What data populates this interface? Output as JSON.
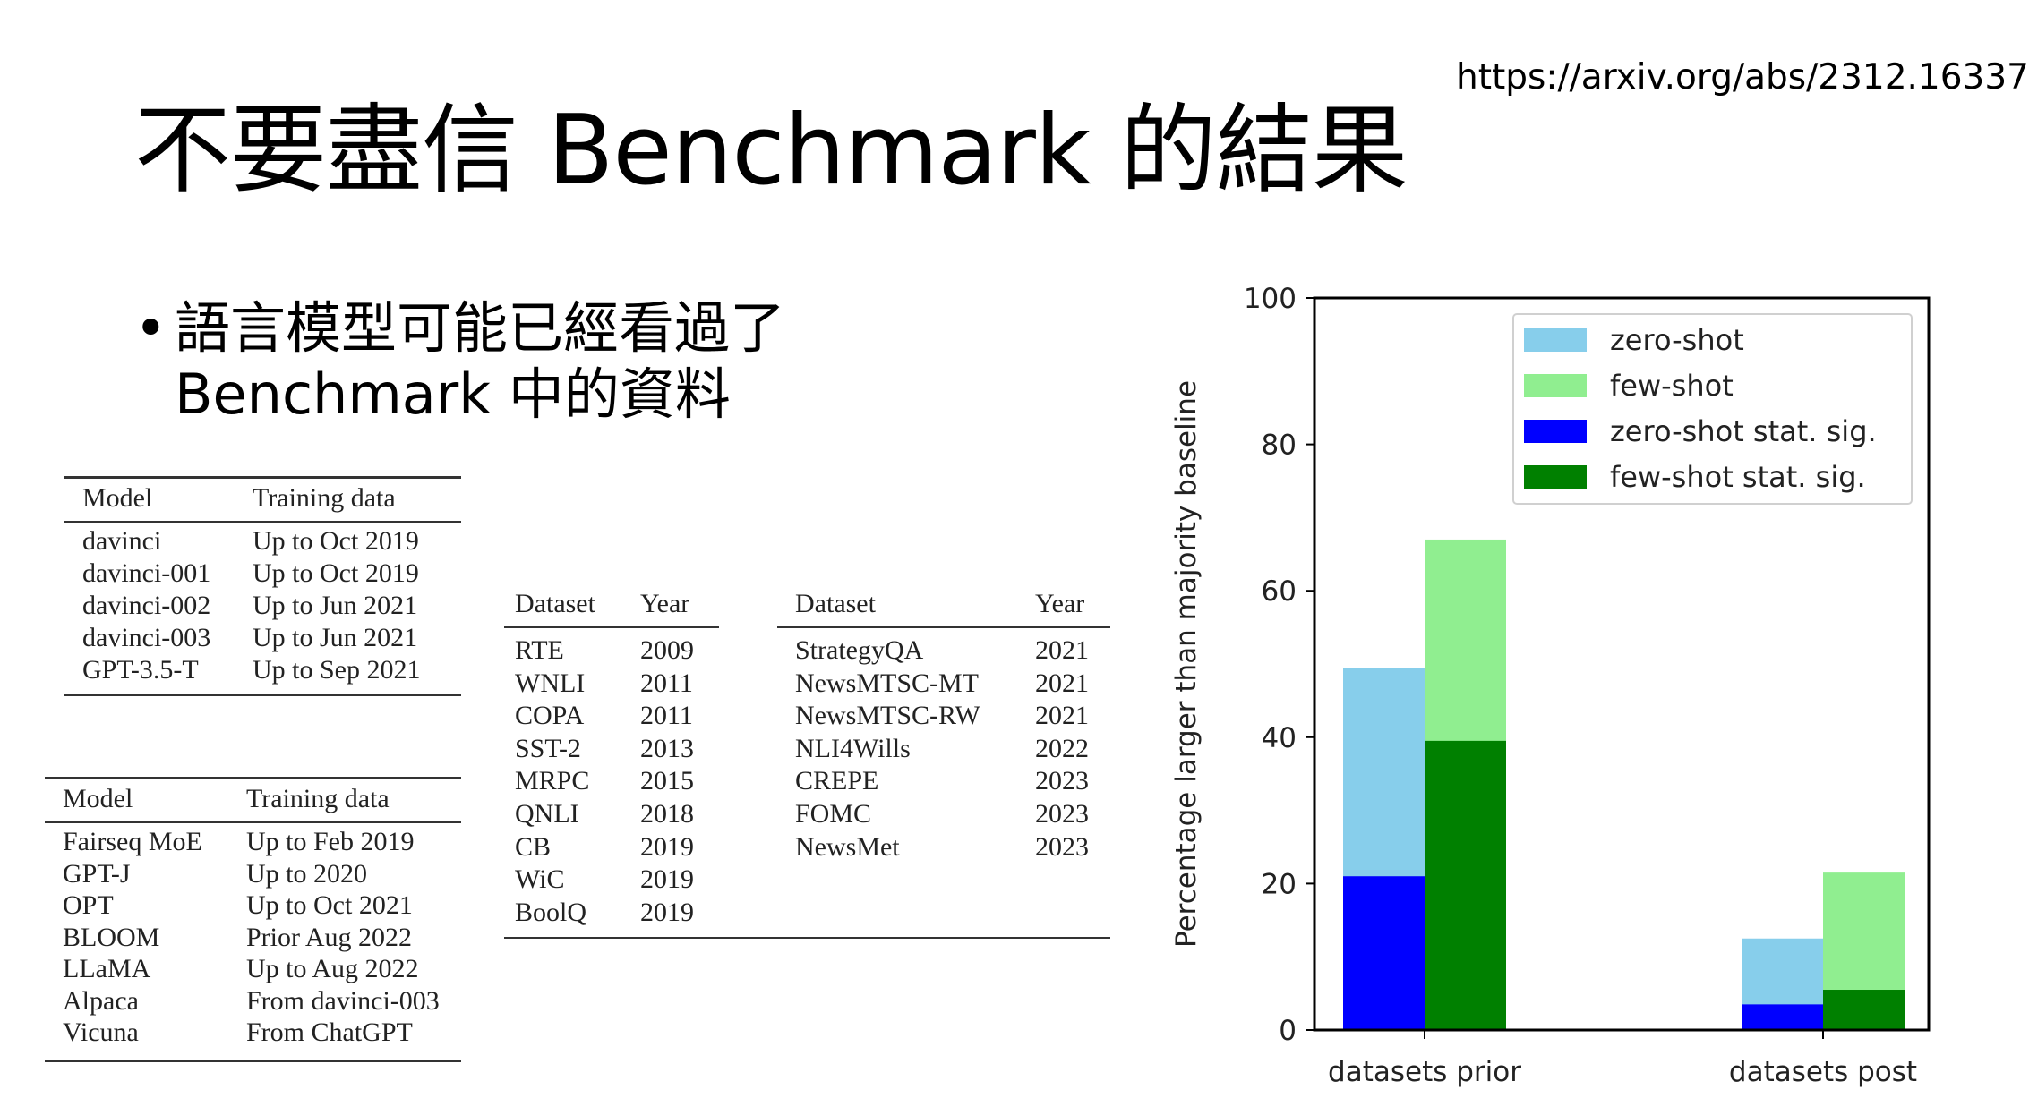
{
  "source_url": "https://arxiv.org/abs/2312.16337",
  "slide_title": "不要盡信 Benchmark 的結果",
  "bullet": {
    "line1": "語言模型可能已經看過了",
    "line2": "Benchmark 中的資料"
  },
  "table_openai": {
    "headers": [
      "Model",
      "Training data"
    ],
    "rows": [
      [
        "davinci",
        "Up to Oct 2019"
      ],
      [
        "davinci-001",
        "Up to Oct 2019"
      ],
      [
        "davinci-002",
        "Up to Jun 2021"
      ],
      [
        "davinci-003",
        "Up to Jun 2021"
      ],
      [
        "GPT-3.5-T",
        "Up to Sep 2021"
      ]
    ]
  },
  "table_open_models": {
    "headers": [
      "Model",
      "Training data"
    ],
    "rows": [
      [
        "Fairseq MoE",
        "Up to Feb 2019"
      ],
      [
        "GPT-J",
        "Up to 2020"
      ],
      [
        "OPT",
        "Up to Oct 2021"
      ],
      [
        "BLOOM",
        "Prior Aug 2022"
      ],
      [
        "LLaMA",
        "Up to Aug 2022"
      ],
      [
        "Alpaca",
        "From davinci-003"
      ],
      [
        "Vicuna",
        "From ChatGPT"
      ]
    ]
  },
  "table_datasets": {
    "left_headers": [
      "Dataset",
      "Year"
    ],
    "left_rows": [
      [
        "RTE",
        "2009"
      ],
      [
        "WNLI",
        "2011"
      ],
      [
        "COPA",
        "2011"
      ],
      [
        "SST-2",
        "2013"
      ],
      [
        "MRPC",
        "2015"
      ],
      [
        "QNLI",
        "2018"
      ],
      [
        "CB",
        "2019"
      ],
      [
        "WiC",
        "2019"
      ],
      [
        "BoolQ",
        "2019"
      ]
    ],
    "right_headers": [
      "Dataset",
      "Year"
    ],
    "right_rows": [
      [
        "StrategyQA",
        "2021"
      ],
      [
        "NewsMTSC-MT",
        "2021"
      ],
      [
        "NewsMTSC-RW",
        "2021"
      ],
      [
        "NLI4Wills",
        "2022"
      ],
      [
        "CREPE",
        "2023"
      ],
      [
        "FOMC",
        "2023"
      ],
      [
        "NewsMet",
        "2023"
      ]
    ]
  },
  "chart_data": {
    "type": "bar",
    "ylabel": "Percentage larger than majority baseline",
    "ylim": [
      0,
      100
    ],
    "yticks": [
      0,
      20,
      40,
      60,
      80,
      100
    ],
    "categories": [
      "datasets prior",
      "datasets post"
    ],
    "series": [
      {
        "name": "zero-shot",
        "color": "#87ceeb",
        "values": [
          49.5,
          12.5
        ]
      },
      {
        "name": "few-shot",
        "color": "#90ee90",
        "values": [
          67,
          21.5
        ]
      },
      {
        "name": "zero-shot stat. sig.",
        "color": "#0000ff",
        "values": [
          21,
          3.5
        ]
      },
      {
        "name": "few-shot stat. sig.",
        "color": "#008000",
        "values": [
          39.5,
          5.5
        ]
      }
    ],
    "legend_position": "top-right",
    "grid": false
  }
}
